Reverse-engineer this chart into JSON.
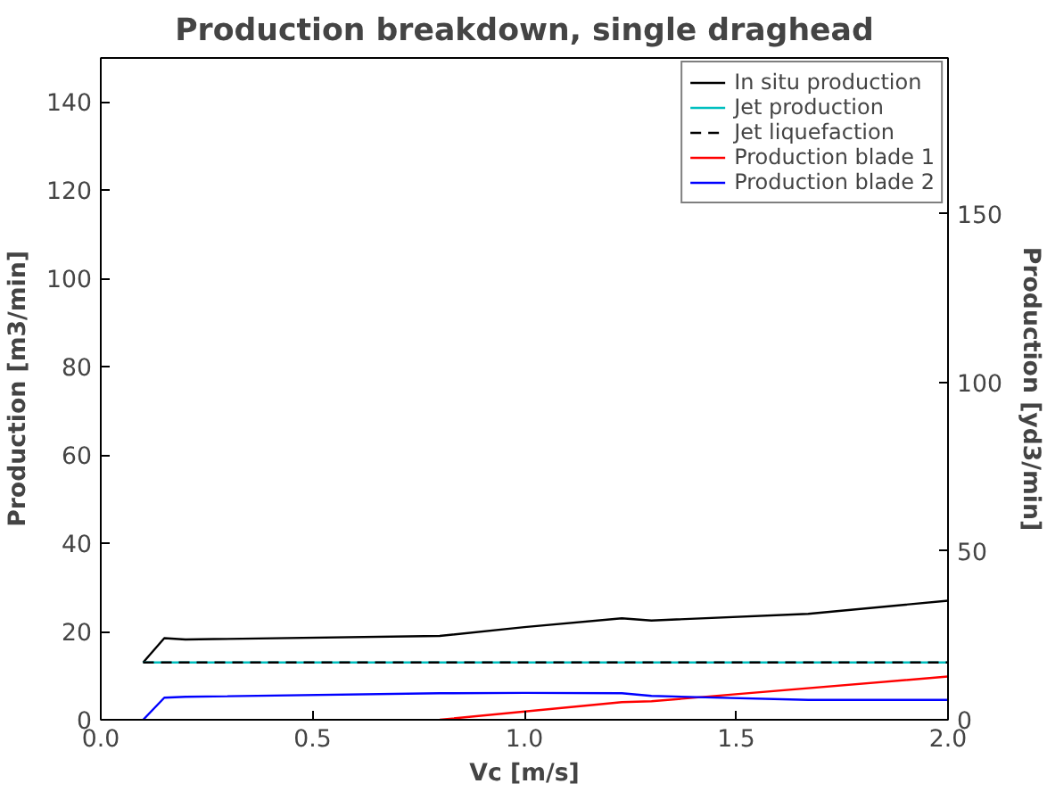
{
  "chart_data": {
    "type": "line",
    "title": "Production breakdown, single draghead",
    "xlabel": "Vc [m/s]",
    "ylabel": "Production [m3/min]",
    "y2label": "Production [yd3/min]",
    "xlim": [
      0,
      2
    ],
    "xticks": [
      {
        "value": 0,
        "label": "0.0"
      },
      0.5,
      {
        "value": 1,
        "label": "1.0"
      },
      1.5,
      {
        "value": 2,
        "label": "2.0"
      }
    ],
    "ylim": [
      0,
      150
    ],
    "yticks": [
      0,
      20,
      40,
      60,
      80,
      100,
      120,
      140
    ],
    "y2lim": [
      0,
      196.2
    ],
    "y2ticks": [
      0,
      50,
      100,
      150
    ],
    "grid": false,
    "legend": "top right",
    "series": [
      {
        "name": "In situ production",
        "color": "#000000",
        "x": [
          0.1,
          0.15,
          0.2,
          0.8,
          1.0,
          1.23,
          1.3,
          1.67,
          2.0
        ],
        "values": [
          13,
          18.5,
          18.2,
          19,
          21,
          23,
          22.5,
          24,
          27
        ]
      },
      {
        "name": "Jet production",
        "color": "#00bfbf",
        "x": [
          0.1,
          2.0
        ],
        "values": [
          13,
          13
        ]
      },
      {
        "name": "Jet liquefaction",
        "color": "#000000",
        "line_style": "dashed",
        "x": [
          0.1,
          2.0
        ],
        "values": [
          13,
          13
        ]
      },
      {
        "name": "Production blade 1",
        "color": "#ff0000",
        "x": [
          0.8,
          1.23,
          1.3,
          2.0
        ],
        "values": [
          0,
          4,
          4.2,
          9.8
        ]
      },
      {
        "name": "Production blade 2",
        "color": "#0000ff",
        "x": [
          0.1,
          0.15,
          0.2,
          0.8,
          1.0,
          1.23,
          1.3,
          1.67,
          2.0
        ],
        "values": [
          0,
          5,
          5.2,
          6,
          6.1,
          6,
          5.4,
          4.5,
          4.5
        ]
      }
    ]
  }
}
